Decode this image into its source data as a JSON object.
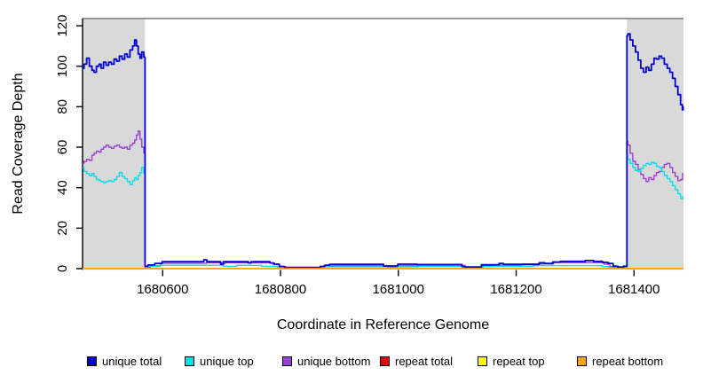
{
  "chart_data": {
    "type": "line",
    "title": "",
    "xlabel": "Coordinate in Reference Genome",
    "ylabel": "Read Coverage Depth",
    "xlim": [
      1680464,
      1681484
    ],
    "ylim": [
      0,
      123.5
    ],
    "x_ticks": [
      "1680600",
      "1680800",
      "1681000",
      "1681200",
      "1681400"
    ],
    "x_tick_values": [
      1680600,
      1680800,
      1681000,
      1681200,
      1681400
    ],
    "y_ticks": [
      "0",
      "20",
      "40",
      "60",
      "80",
      "100",
      "120"
    ],
    "y_tick_values": [
      0,
      20,
      40,
      60,
      80,
      100,
      120
    ],
    "grid": false,
    "legend_position": "bottom",
    "colors": {
      "shaded_region": "#d9d9d9",
      "top_border": "#8e8e8e",
      "axis": "#000000"
    },
    "shaded_regions": [
      {
        "x0": 1680464,
        "x1": 1680570
      },
      {
        "x0": 1681388,
        "x1": 1681484
      }
    ],
    "legend": [
      {
        "label": "unique total",
        "color": "#0000d2"
      },
      {
        "label": "unique top",
        "color": "#00e0e8"
      },
      {
        "label": "unique bottom",
        "color": "#9c3fd4"
      },
      {
        "label": "repeat total",
        "color": "#e60000"
      },
      {
        "label": "repeat top",
        "color": "#ffff00"
      },
      {
        "label": "repeat bottom",
        "color": "#ffa500"
      }
    ],
    "series": [
      {
        "name": "repeat total",
        "color": "#e60000",
        "width": 1.2,
        "points": [
          [
            1680464,
            0
          ],
          [
            1681484,
            0
          ]
        ]
      },
      {
        "name": "repeat top",
        "color": "#ffff00",
        "width": 1.2,
        "points": [
          [
            1680464,
            0
          ],
          [
            1681484,
            0
          ]
        ]
      },
      {
        "name": "unique bottom",
        "color": "#9c3fd4",
        "width": 1.4,
        "points": [
          [
            1680464,
            52
          ],
          [
            1680469,
            53
          ],
          [
            1680473,
            54
          ],
          [
            1680478,
            53.5
          ],
          [
            1680482,
            56
          ],
          [
            1680485,
            57
          ],
          [
            1680490,
            58
          ],
          [
            1680494,
            57.5
          ],
          [
            1680497,
            59
          ],
          [
            1680502,
            60
          ],
          [
            1680506,
            61
          ],
          [
            1680511,
            60
          ],
          [
            1680515,
            59.5
          ],
          [
            1680520,
            60.5
          ],
          [
            1680524,
            61
          ],
          [
            1680529,
            60
          ],
          [
            1680533,
            59.5
          ],
          [
            1680538,
            60
          ],
          [
            1680542,
            59
          ],
          [
            1680547,
            61
          ],
          [
            1680551,
            62
          ],
          [
            1680554,
            63.5
          ],
          [
            1680557,
            66
          ],
          [
            1680560,
            68
          ],
          [
            1680563,
            64
          ],
          [
            1680566,
            60
          ],
          [
            1680570,
            57
          ],
          [
            1680570,
            0.5
          ],
          [
            1680588,
            1.4
          ],
          [
            1680606,
            2.6
          ],
          [
            1680670,
            2.6
          ],
          [
            1680678,
            2.9
          ],
          [
            1680698,
            2.9
          ],
          [
            1680703,
            2.4
          ],
          [
            1680708,
            2.9
          ],
          [
            1680780,
            2.9
          ],
          [
            1680793,
            2.2
          ],
          [
            1680803,
            1
          ],
          [
            1680813,
            0.5
          ],
          [
            1680865,
            0.5
          ],
          [
            1680882,
            1.3
          ],
          [
            1680975,
            1.3
          ],
          [
            1680992,
            0.8
          ],
          [
            1681004,
            1.4
          ],
          [
            1681037,
            1.4
          ],
          [
            1681042,
            1.6
          ],
          [
            1681107,
            1.6
          ],
          [
            1681119,
            0.7
          ],
          [
            1681141,
            0.7
          ],
          [
            1681147,
            1.4
          ],
          [
            1681176,
            1.7
          ],
          [
            1681243,
            2.3
          ],
          [
            1681284,
            3
          ],
          [
            1681344,
            3
          ],
          [
            1681354,
            2.2
          ],
          [
            1681364,
            1
          ],
          [
            1681380,
            0.5
          ],
          [
            1681388,
            1.1
          ],
          [
            1681388,
            63
          ],
          [
            1681391,
            61
          ],
          [
            1681396,
            57
          ],
          [
            1681400,
            53
          ],
          [
            1681405,
            51.5
          ],
          [
            1681409,
            49
          ],
          [
            1681414,
            46.5
          ],
          [
            1681418,
            44.5
          ],
          [
            1681423,
            43
          ],
          [
            1681427,
            45
          ],
          [
            1681432,
            44
          ],
          [
            1681436,
            46
          ],
          [
            1681440,
            47.5
          ],
          [
            1681445,
            48
          ],
          [
            1681449,
            50
          ],
          [
            1681454,
            51.5
          ],
          [
            1681459,
            52
          ],
          [
            1681463,
            50
          ],
          [
            1681468,
            47.5
          ],
          [
            1681472,
            45.5
          ],
          [
            1681477,
            43.5
          ],
          [
            1681481,
            44
          ],
          [
            1681484,
            47
          ]
        ]
      },
      {
        "name": "unique top",
        "color": "#00e0e8",
        "width": 1.4,
        "points": [
          [
            1680464,
            50
          ],
          [
            1680469,
            48
          ],
          [
            1680473,
            47
          ],
          [
            1680478,
            46
          ],
          [
            1680482,
            47
          ],
          [
            1680485,
            45.5
          ],
          [
            1680490,
            44
          ],
          [
            1680494,
            43.5
          ],
          [
            1680497,
            43
          ],
          [
            1680502,
            42.5
          ],
          [
            1680506,
            43
          ],
          [
            1680511,
            43.5
          ],
          [
            1680515,
            43
          ],
          [
            1680520,
            44
          ],
          [
            1680524,
            45.5
          ],
          [
            1680529,
            47.5
          ],
          [
            1680533,
            45.5
          ],
          [
            1680538,
            44.5
          ],
          [
            1680542,
            43
          ],
          [
            1680547,
            41.5
          ],
          [
            1680551,
            43.5
          ],
          [
            1680554,
            45
          ],
          [
            1680557,
            44
          ],
          [
            1680560,
            46
          ],
          [
            1680563,
            47.5
          ],
          [
            1680566,
            50
          ],
          [
            1680570,
            47
          ],
          [
            1680570,
            0.8
          ],
          [
            1680585,
            1.2
          ],
          [
            1680605,
            1.6
          ],
          [
            1680700,
            1.6
          ],
          [
            1680706,
            1.2
          ],
          [
            1680745,
            1.6
          ],
          [
            1680790,
            1.2
          ],
          [
            1680800,
            0.6
          ],
          [
            1680812,
            0.3
          ],
          [
            1680864,
            0.3
          ],
          [
            1680880,
            0.9
          ],
          [
            1680975,
            0.9
          ],
          [
            1680990,
            0.5
          ],
          [
            1681003,
            0.9
          ],
          [
            1681030,
            0.9
          ],
          [
            1681040,
            1.2
          ],
          [
            1681105,
            1.2
          ],
          [
            1681118,
            0.5
          ],
          [
            1681140,
            0.5
          ],
          [
            1681145,
            1
          ],
          [
            1681175,
            1.2
          ],
          [
            1681283,
            1.5
          ],
          [
            1681340,
            1.5
          ],
          [
            1681352,
            1
          ],
          [
            1681362,
            0.5
          ],
          [
            1681378,
            0.3
          ],
          [
            1681388,
            0.8
          ],
          [
            1681388,
            56
          ],
          [
            1681391,
            54
          ],
          [
            1681396,
            52
          ],
          [
            1681400,
            50
          ],
          [
            1681405,
            48.5
          ],
          [
            1681409,
            48
          ],
          [
            1681414,
            49.5
          ],
          [
            1681418,
            51
          ],
          [
            1681423,
            52
          ],
          [
            1681427,
            51.5
          ],
          [
            1681432,
            52.5
          ],
          [
            1681436,
            52
          ],
          [
            1681440,
            50.5
          ],
          [
            1681445,
            50
          ],
          [
            1681449,
            48
          ],
          [
            1681454,
            46
          ],
          [
            1681459,
            44.5
          ],
          [
            1681463,
            43
          ],
          [
            1681468,
            41
          ],
          [
            1681472,
            39
          ],
          [
            1681477,
            37
          ],
          [
            1681481,
            34.5
          ],
          [
            1681484,
            35.5
          ]
        ]
      },
      {
        "name": "unique total",
        "color": "#0000d2",
        "width": 1.8,
        "points": [
          [
            1680464,
            99
          ],
          [
            1680469,
            101
          ],
          [
            1680473,
            104
          ],
          [
            1680478,
            100
          ],
          [
            1680482,
            98
          ],
          [
            1680485,
            97
          ],
          [
            1680490,
            100
          ],
          [
            1680494,
            101
          ],
          [
            1680497,
            99
          ],
          [
            1680502,
            102
          ],
          [
            1680506,
            100.5
          ],
          [
            1680511,
            102
          ],
          [
            1680515,
            101
          ],
          [
            1680520,
            103.5
          ],
          [
            1680524,
            102.5
          ],
          [
            1680529,
            105
          ],
          [
            1680533,
            103.5
          ],
          [
            1680538,
            106
          ],
          [
            1680542,
            104.5
          ],
          [
            1680547,
            108
          ],
          [
            1680551,
            110
          ],
          [
            1680554,
            113
          ],
          [
            1680557,
            110
          ],
          [
            1680560,
            106
          ],
          [
            1680563,
            104
          ],
          [
            1680566,
            107
          ],
          [
            1680570,
            104.5
          ],
          [
            1680570,
            1.2
          ],
          [
            1680580,
            1.8
          ],
          [
            1680593,
            2.6
          ],
          [
            1680605,
            3.4
          ],
          [
            1680668,
            3.4
          ],
          [
            1680672,
            4.4
          ],
          [
            1680678,
            3.4
          ],
          [
            1680696,
            3.4
          ],
          [
            1680701,
            2.2
          ],
          [
            1680705,
            3.4
          ],
          [
            1680743,
            3.4
          ],
          [
            1680748,
            2.8
          ],
          [
            1680752,
            3.4
          ],
          [
            1680779,
            3.4
          ],
          [
            1680785,
            2.8
          ],
          [
            1680794,
            2.2
          ],
          [
            1680802,
            1.1
          ],
          [
            1680811,
            0.6
          ],
          [
            1680864,
            0.6
          ],
          [
            1680871,
            1.1
          ],
          [
            1680879,
            1.7
          ],
          [
            1680888,
            2.1
          ],
          [
            1680972,
            2.1
          ],
          [
            1680978,
            1.3
          ],
          [
            1680996,
            1.3
          ],
          [
            1681002,
            2.2
          ],
          [
            1681029,
            2.2
          ],
          [
            1681035,
            2
          ],
          [
            1681105,
            2
          ],
          [
            1681111,
            1
          ],
          [
            1681117,
            0.8
          ],
          [
            1681138,
            0.8
          ],
          [
            1681144,
            1.9
          ],
          [
            1681168,
            1.9
          ],
          [
            1681174,
            2.6
          ],
          [
            1681183,
            2.1
          ],
          [
            1681236,
            2.1
          ],
          [
            1681242,
            2.9
          ],
          [
            1681255,
            2.6
          ],
          [
            1681269,
            3.3
          ],
          [
            1681282,
            3.6
          ],
          [
            1681315,
            3.6
          ],
          [
            1681320,
            4
          ],
          [
            1681342,
            3.6
          ],
          [
            1681351,
            3.1
          ],
          [
            1681361,
            2.6
          ],
          [
            1681368,
            1.2
          ],
          [
            1681377,
            0.8
          ],
          [
            1681388,
            1.2
          ],
          [
            1681388,
            115
          ],
          [
            1681391,
            116
          ],
          [
            1681396,
            113
          ],
          [
            1681400,
            110
          ],
          [
            1681405,
            107
          ],
          [
            1681409,
            103
          ],
          [
            1681414,
            99
          ],
          [
            1681418,
            97
          ],
          [
            1681423,
            99.5
          ],
          [
            1681427,
            98
          ],
          [
            1681432,
            101
          ],
          [
            1681436,
            104
          ],
          [
            1681440,
            103.5
          ],
          [
            1681445,
            105
          ],
          [
            1681449,
            104
          ],
          [
            1681454,
            101
          ],
          [
            1681459,
            99
          ],
          [
            1681463,
            97
          ],
          [
            1681468,
            94
          ],
          [
            1681472,
            90
          ],
          [
            1681477,
            86
          ],
          [
            1681481,
            81
          ],
          [
            1681483,
            78.5
          ],
          [
            1681484,
            80
          ]
        ]
      },
      {
        "name": "repeat bottom",
        "color": "#ffa500",
        "width": 1.8,
        "points": [
          [
            1680464,
            0
          ],
          [
            1681484,
            0
          ]
        ]
      }
    ]
  }
}
